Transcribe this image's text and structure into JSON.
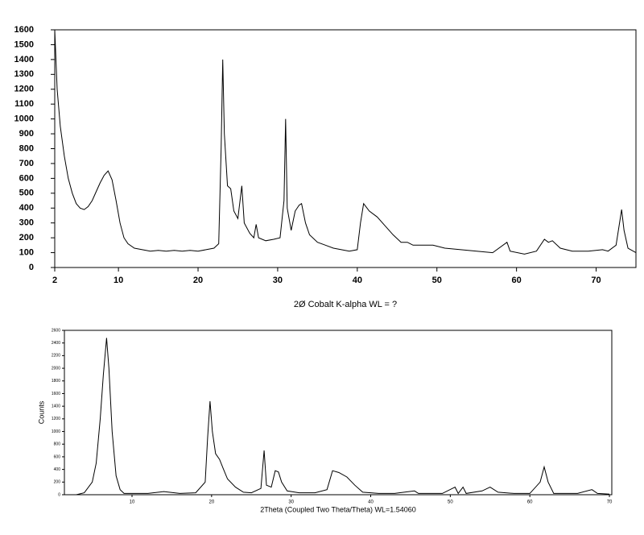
{
  "chart_data": [
    {
      "type": "line",
      "x_label": "2Ø Cobalt K-alpha  WL = ?",
      "color": "#000000",
      "x": [
        2,
        2.3,
        2.7,
        3.2,
        3.7,
        4.2,
        4.7,
        5.2,
        5.7,
        6.2,
        6.7,
        7.2,
        7.7,
        8.2,
        8.7,
        9.2,
        9.7,
        10.2,
        10.7,
        11.2,
        12,
        13,
        14,
        15,
        16,
        17,
        18,
        19,
        20,
        21,
        22,
        22.6,
        22.9,
        23.1,
        23.3,
        23.7,
        24.1,
        24.5,
        25,
        25.5,
        25.8,
        26.5,
        27,
        27.3,
        27.6,
        28.5,
        29.5,
        30.3,
        30.8,
        31,
        31.2,
        31.7,
        32.2,
        32.7,
        33,
        33.5,
        34,
        35,
        36,
        37,
        38,
        39,
        40,
        40.4,
        40.8,
        41.5,
        42.5,
        43.5,
        44.5,
        45.5,
        46.3,
        47,
        48,
        49.5,
        51,
        53,
        55,
        57,
        58.8,
        59.2,
        61,
        62.5,
        63.5,
        64,
        64.5,
        65.5,
        67,
        69,
        70.8,
        71.5,
        72.5,
        73,
        73.2,
        73.5,
        74,
        75
      ],
      "values": [
        1600,
        1200,
        950,
        750,
        600,
        500,
        430,
        400,
        390,
        410,
        450,
        510,
        570,
        620,
        650,
        590,
        450,
        300,
        200,
        160,
        130,
        120,
        110,
        115,
        110,
        115,
        110,
        115,
        110,
        120,
        130,
        160,
        800,
        1400,
        900,
        550,
        530,
        380,
        330,
        550,
        300,
        230,
        200,
        290,
        200,
        180,
        190,
        200,
        450,
        1000,
        400,
        250,
        380,
        420,
        430,
        300,
        220,
        170,
        150,
        130,
        120,
        110,
        120,
        300,
        430,
        380,
        340,
        280,
        220,
        170,
        170,
        150,
        150,
        150,
        130,
        120,
        110,
        100,
        170,
        110,
        90,
        110,
        190,
        170,
        180,
        130,
        110,
        110,
        120,
        110,
        150,
        320,
        390,
        250,
        130,
        100
      ],
      "xlim": [
        2,
        75
      ],
      "ylim": [
        0,
        1600
      ],
      "xticks": [
        2,
        10,
        20,
        30,
        40,
        50,
        60,
        70
      ],
      "yticks": [
        0,
        100,
        200,
        300,
        400,
        500,
        600,
        700,
        800,
        900,
        1000,
        1100,
        1200,
        1300,
        1400,
        1500,
        1600
      ]
    },
    {
      "type": "line",
      "x_label": "2Theta (Coupled Two Theta/Theta) WL=1.54060",
      "y_label": "Counts",
      "color": "#000000",
      "x": [
        3,
        4,
        5,
        5.5,
        6,
        6.4,
        6.8,
        7.1,
        7.5,
        8,
        8.5,
        9,
        10,
        12,
        14,
        16,
        18,
        19.2,
        19.5,
        19.8,
        20.1,
        20.5,
        21,
        21.5,
        22,
        23,
        24,
        25,
        26.2,
        26.6,
        26.9,
        27.5,
        28,
        28.4,
        28.8,
        29.5,
        31,
        33,
        34.5,
        35.2,
        36,
        37,
        38,
        39,
        41,
        43,
        45.5,
        46,
        49,
        50.6,
        51,
        51.6,
        52,
        54,
        55,
        56,
        58,
        60,
        61.3,
        61.8,
        62.3,
        63,
        66,
        67.8,
        68.5,
        70
      ],
      "values": [
        0,
        30,
        200,
        500,
        1200,
        1900,
        2480,
        2000,
        1000,
        300,
        80,
        20,
        20,
        20,
        50,
        20,
        30,
        200,
        900,
        1480,
        1000,
        650,
        560,
        400,
        250,
        120,
        40,
        30,
        100,
        700,
        150,
        120,
        380,
        360,
        200,
        60,
        30,
        30,
        80,
        380,
        350,
        280,
        150,
        40,
        20,
        20,
        60,
        20,
        20,
        120,
        20,
        120,
        20,
        60,
        120,
        40,
        20,
        20,
        200,
        440,
        200,
        20,
        20,
        80,
        20,
        10
      ],
      "xlim": [
        1.5,
        70.3
      ],
      "ylim": [
        0,
        2600
      ],
      "xticks": [
        10,
        20,
        30,
        40,
        50,
        60,
        70
      ],
      "yticks": [
        0,
        200,
        400,
        600,
        800,
        1000,
        1200,
        1400,
        1600,
        1800,
        2000,
        2200,
        2400,
        2600
      ]
    }
  ]
}
